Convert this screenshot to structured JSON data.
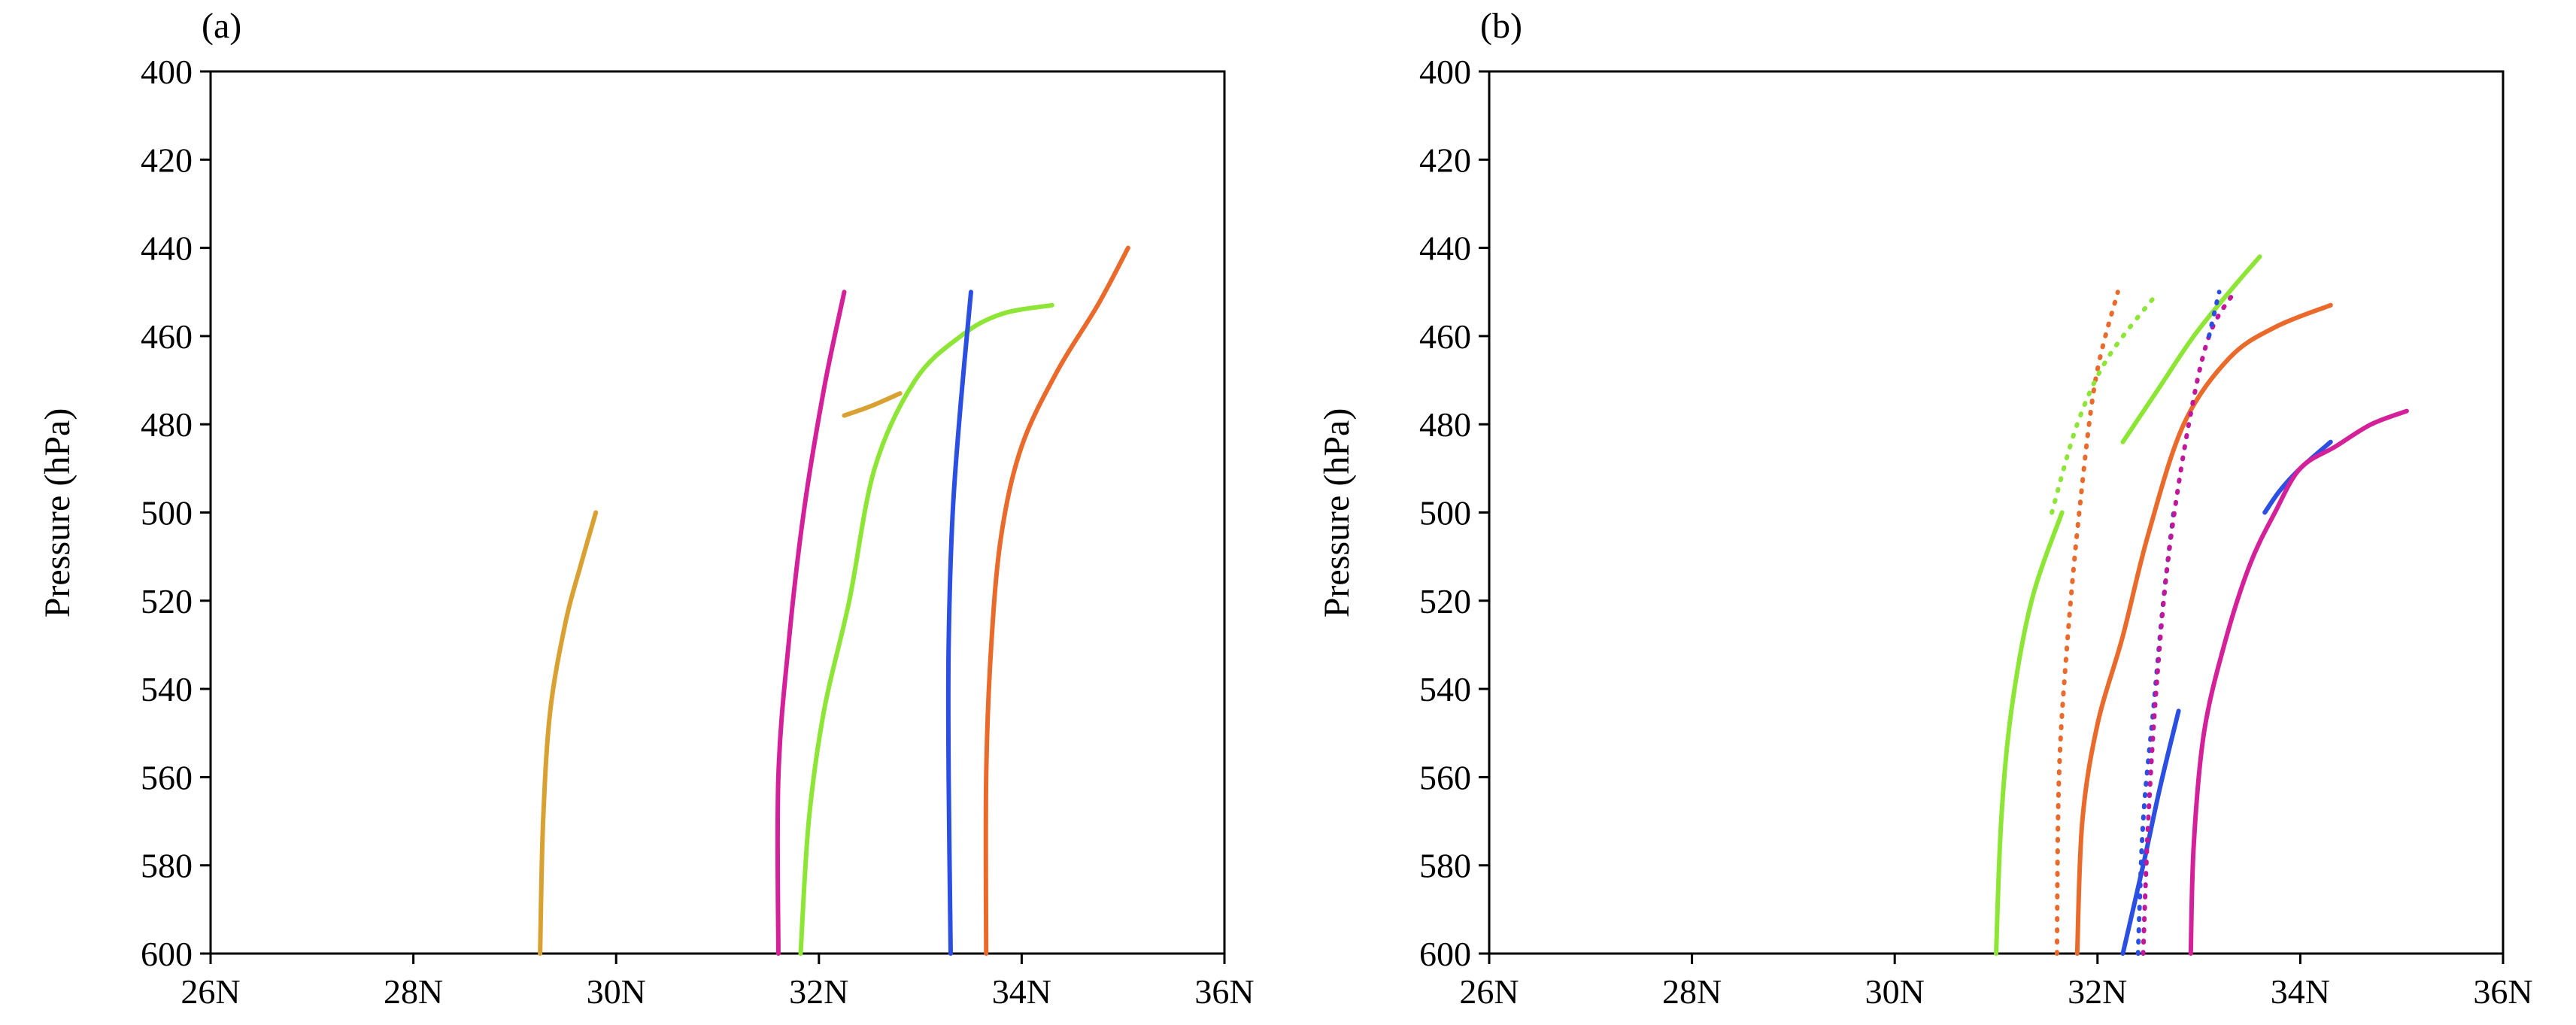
{
  "chart_data": [
    {
      "type": "line",
      "panel_label": "(a)",
      "ylabel": "Pressure (hPa)",
      "xlabel": "",
      "xlim": [
        26,
        36
      ],
      "ylim": [
        400,
        600
      ],
      "y_inverted": true,
      "xticks": [
        "26N",
        "28N",
        "30N",
        "32N",
        "34N",
        "36N"
      ],
      "yticks": [
        "400",
        "420",
        "440",
        "460",
        "480",
        "500",
        "520",
        "540",
        "560",
        "580",
        "600"
      ],
      "grid": false,
      "series": [
        {
          "color": "#d9a032",
          "style": "solid",
          "points": [
            [
              29.25,
              600
            ],
            [
              29.28,
              570
            ],
            [
              29.35,
              545
            ],
            [
              29.5,
              525
            ],
            [
              29.65,
              512
            ],
            [
              29.8,
              500
            ]
          ]
        },
        {
          "color": "#d9a032",
          "style": "solid",
          "points": [
            [
              32.25,
              478
            ],
            [
              32.5,
              476
            ],
            [
              32.8,
              473
            ]
          ]
        },
        {
          "color": "#d4219a",
          "style": "solid",
          "points": [
            [
              31.6,
              600
            ],
            [
              31.6,
              560
            ],
            [
              31.7,
              530
            ],
            [
              31.85,
              500
            ],
            [
              32.05,
              472
            ],
            [
              32.25,
              450
            ]
          ]
        },
        {
          "color": "#8de536",
          "style": "solid",
          "points": [
            [
              31.82,
              600
            ],
            [
              31.9,
              570
            ],
            [
              32.05,
              545
            ],
            [
              32.3,
              520
            ],
            [
              32.55,
              490
            ],
            [
              32.95,
              470
            ],
            [
              33.4,
              460
            ],
            [
              33.8,
              455
            ],
            [
              34.3,
              453
            ]
          ]
        },
        {
          "color": "#2b4ee3",
          "style": "solid",
          "points": [
            [
              33.3,
              600
            ],
            [
              33.28,
              560
            ],
            [
              33.28,
              530
            ],
            [
              33.32,
              500
            ],
            [
              33.4,
              475
            ],
            [
              33.5,
              450
            ]
          ]
        },
        {
          "color": "#ea6a2c",
          "style": "solid",
          "points": [
            [
              33.65,
              600
            ],
            [
              33.65,
              560
            ],
            [
              33.7,
              530
            ],
            [
              33.8,
              505
            ],
            [
              34.0,
              485
            ],
            [
              34.35,
              468
            ],
            [
              34.75,
              453
            ],
            [
              35.05,
              440
            ]
          ]
        }
      ]
    },
    {
      "type": "line",
      "panel_label": "(b)",
      "ylabel": "Pressure (hPa)",
      "xlabel": "",
      "xlim": [
        26,
        36
      ],
      "ylim": [
        400,
        600
      ],
      "y_inverted": true,
      "xticks": [
        "26N",
        "28N",
        "30N",
        "32N",
        "34N",
        "36N"
      ],
      "yticks": [
        "400",
        "420",
        "440",
        "460",
        "480",
        "500",
        "520",
        "540",
        "560",
        "580",
        "600"
      ],
      "grid": false,
      "series": [
        {
          "color": "#8de536",
          "style": "solid",
          "points": [
            [
              31.0,
              600
            ],
            [
              31.05,
              570
            ],
            [
              31.15,
              545
            ],
            [
              31.35,
              520
            ],
            [
              31.65,
              500
            ]
          ]
        },
        {
          "color": "#8de536",
          "style": "solid",
          "points": [
            [
              32.25,
              484
            ],
            [
              32.6,
              472
            ],
            [
              32.95,
              460
            ],
            [
              33.3,
              450
            ],
            [
              33.6,
              442
            ]
          ]
        },
        {
          "color": "#ea6a2c",
          "style": "solid",
          "points": [
            [
              31.8,
              600
            ],
            [
              31.85,
              570
            ],
            [
              32.0,
              548
            ],
            [
              32.25,
              528
            ],
            [
              32.5,
              505
            ],
            [
              32.85,
              480
            ],
            [
              33.3,
              465
            ],
            [
              33.75,
              458
            ],
            [
              34.3,
              453
            ]
          ]
        },
        {
          "color": "#2b4ee3",
          "style": "solid",
          "points": [
            [
              32.25,
              600
            ],
            [
              32.45,
              580
            ],
            [
              32.62,
              562
            ],
            [
              32.8,
              545
            ]
          ]
        },
        {
          "color": "#2b4ee3",
          "style": "solid",
          "points": [
            [
              33.65,
              500
            ],
            [
              33.8,
              495
            ],
            [
              34.0,
              490
            ],
            [
              34.3,
              484
            ]
          ]
        },
        {
          "color": "#d4219a",
          "style": "solid",
          "points": [
            [
              32.92,
              600
            ],
            [
              32.95,
              575
            ],
            [
              33.05,
              550
            ],
            [
              33.25,
              530
            ],
            [
              33.5,
              512
            ],
            [
              33.75,
              500
            ],
            [
              34.0,
              490
            ],
            [
              34.35,
              485
            ],
            [
              34.7,
              480
            ],
            [
              35.05,
              477
            ]
          ]
        },
        {
          "color": "#ea6a2c",
          "style": "dotted",
          "points": [
            [
              31.6,
              600
            ],
            [
              31.62,
              560
            ],
            [
              31.7,
              530
            ],
            [
              31.82,
              500
            ],
            [
              31.98,
              470
            ],
            [
              32.2,
              450
            ]
          ]
        },
        {
          "color": "#8de536",
          "style": "dotted",
          "points": [
            [
              31.55,
              500
            ],
            [
              31.8,
              480
            ],
            [
              32.1,
              465
            ],
            [
              32.6,
              450
            ]
          ]
        },
        {
          "color": "#2b4ee3",
          "style": "dotted",
          "points": [
            [
              32.4,
              600
            ],
            [
              32.45,
              570
            ],
            [
              32.55,
              545
            ],
            [
              32.65,
              520
            ],
            [
              32.75,
              500
            ]
          ]
        },
        {
          "color": "#c2179a",
          "style": "dotted",
          "points": [
            [
              32.45,
              600
            ],
            [
              32.5,
              570
            ],
            [
              32.58,
              540
            ],
            [
              32.7,
              510
            ],
            [
              32.9,
              480
            ],
            [
              33.1,
              460
            ],
            [
              33.35,
              450
            ]
          ]
        },
        {
          "color": "#2b4ee3",
          "style": "dotted",
          "points": [
            [
              33.1,
              460
            ],
            [
              33.2,
              450
            ]
          ]
        }
      ]
    }
  ]
}
